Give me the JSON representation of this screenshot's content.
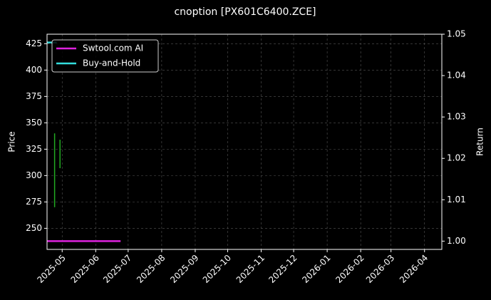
{
  "chart_data": {
    "type": "line",
    "title": "cnoption [PX601C6400.ZCE]",
    "ylabel": "Price",
    "y2label": "Return",
    "xlim": [
      "2025-04-17",
      "2026-04-17"
    ],
    "xticks": [
      "2025-05",
      "2025-06",
      "2025-07",
      "2025-08",
      "2025-09",
      "2025-10",
      "2025-11",
      "2025-12",
      "2026-01",
      "2026-02",
      "2026-03",
      "2026-04"
    ],
    "ylim": [
      230,
      434
    ],
    "yticks": [
      250,
      275,
      300,
      325,
      350,
      375,
      400,
      425
    ],
    "y2lim": [
      0.998,
      1.05
    ],
    "y2ticks": [
      {
        "value": 1.0,
        "label": "1.00"
      },
      {
        "value": 1.01,
        "label": "1.01"
      },
      {
        "value": 1.02,
        "label": "1.02"
      },
      {
        "value": 1.03,
        "label": "1.03"
      },
      {
        "value": 1.04,
        "label": "1.04"
      },
      {
        "value": 1.05,
        "label": "1.05"
      }
    ],
    "grid": true,
    "legend": "upper left",
    "price": {
      "color": "#22aa22",
      "x": [
        "2025-04-24",
        "2025-04-29"
      ],
      "low": [
        270,
        307
      ],
      "high": [
        340,
        334
      ]
    },
    "series": [
      {
        "name": "Swtool.com AI",
        "color": "#dd22dd",
        "axis": "y2",
        "x": [
          "2025-04-17",
          "2025-06-24"
        ],
        "values": [
          1.0,
          1.0
        ]
      },
      {
        "name": "Buy-and-Hold",
        "color": "#33dddd",
        "axis": "y2",
        "x": [
          "2025-04-17",
          "2025-04-26"
        ],
        "values": [
          1.048,
          1.048
        ]
      }
    ]
  }
}
